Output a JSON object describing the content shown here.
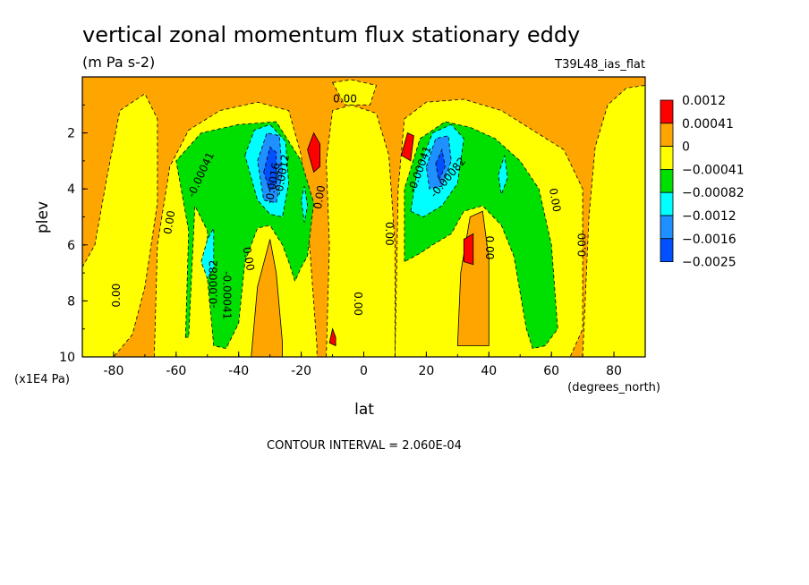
{
  "chart_data": {
    "type": "heatmap",
    "title": "vertical zonal momentum flux stationary eddy",
    "units": "(m Pa s-2)",
    "dataset_label": "T39L48_ias_flat",
    "xlabel": "lat",
    "xunits": "(degrees_north)",
    "ylabel": "plev",
    "yunits": "(x1E4 Pa)",
    "xlim": [
      -90,
      90
    ],
    "ylim": [
      0,
      10
    ],
    "y_inverted": true,
    "x_ticks": [
      "-80",
      "-60",
      "-40",
      "-20",
      "0",
      "20",
      "40",
      "60",
      "80"
    ],
    "x_tick_values": [
      -80,
      -60,
      -40,
      -20,
      0,
      20,
      40,
      60,
      80
    ],
    "y_ticks": [
      "2",
      "4",
      "6",
      "8",
      "10"
    ],
    "y_tick_values": [
      2,
      4,
      6,
      8,
      10
    ],
    "footer": "CONTOUR INTERVAL = 2.060E-04",
    "legend": {
      "placement": "right",
      "labels": [
        "0.0012",
        "0.00041",
        "0",
        "−0.00041",
        "−0.00082",
        "−0.0012",
        "−0.0016",
        "−0.0025"
      ],
      "colors": [
        "#ff0000",
        "#ffa500",
        "#ffff00",
        "#00e000",
        "#00ffff",
        "#1e90ff",
        "#0050ff"
      ]
    },
    "background_color": "#ffa500",
    "regions": [
      {
        "color": "#ffff00",
        "poly": [
          [
            -90,
            6.8
          ],
          [
            -86,
            6.0
          ],
          [
            -82,
            3.5
          ],
          [
            -78,
            1.2
          ],
          [
            -70,
            0.6
          ],
          [
            -66,
            1.5
          ],
          [
            -66,
            4.5
          ],
          [
            -70,
            7.5
          ],
          [
            -74,
            9.2
          ],
          [
            -80,
            10
          ],
          [
            -90,
            10
          ]
        ]
      },
      {
        "color": "#ffff00",
        "poly": [
          [
            -67,
            10
          ],
          [
            -66,
            6
          ],
          [
            -62,
            3.2
          ],
          [
            -56,
            1.9
          ],
          [
            -46,
            1.2
          ],
          [
            -34,
            0.9
          ],
          [
            -24,
            1.2
          ],
          [
            -20,
            2.8
          ],
          [
            -18,
            5
          ],
          [
            -15,
            9.6
          ],
          [
            -15,
            10
          ]
        ]
      },
      {
        "color": "#ffff00",
        "poly": [
          [
            -12,
            10
          ],
          [
            -11,
            6
          ],
          [
            -12,
            3
          ],
          [
            -10,
            1.2
          ],
          [
            -4,
            1.0
          ],
          [
            4,
            1.3
          ],
          [
            8,
            2.8
          ],
          [
            10,
            6
          ],
          [
            10,
            10
          ]
        ]
      },
      {
        "color": "#ffff00",
        "poly": [
          [
            10,
            10
          ],
          [
            11,
            4
          ],
          [
            13,
            1.5
          ],
          [
            20,
            0.9
          ],
          [
            32,
            0.8
          ],
          [
            44,
            1.2
          ],
          [
            54,
            1.9
          ],
          [
            64,
            2.6
          ],
          [
            70,
            4
          ],
          [
            70,
            9
          ],
          [
            66,
            10
          ]
        ]
      },
      {
        "color": "#ffff00",
        "poly": [
          [
            -10,
            0.2
          ],
          [
            -4,
            0.1
          ],
          [
            4,
            0.3
          ],
          [
            2,
            1.0
          ],
          [
            -6,
            1.0
          ]
        ]
      },
      {
        "color": "#ffff00",
        "poly": [
          [
            70,
            10
          ],
          [
            72,
            5
          ],
          [
            74,
            2.5
          ],
          [
            78,
            1.0
          ],
          [
            84,
            0.4
          ],
          [
            90,
            0.3
          ],
          [
            90,
            10
          ]
        ]
      },
      {
        "color": "#ffa500",
        "poly": [
          [
            -36,
            10
          ],
          [
            -34,
            7.5
          ],
          [
            -30,
            5.8
          ],
          [
            -28,
            7
          ],
          [
            -26,
            9.5
          ],
          [
            -26,
            10
          ]
        ]
      },
      {
        "color": "#ffa500",
        "poly": [
          [
            30,
            9.6
          ],
          [
            31,
            7
          ],
          [
            34,
            5
          ],
          [
            38,
            4.8
          ],
          [
            40,
            6.5
          ],
          [
            40,
            9.6
          ]
        ]
      },
      {
        "color": "#00e000",
        "poly": [
          [
            -57,
            9.3
          ],
          [
            -56,
            5.5
          ],
          [
            -60,
            3
          ],
          [
            -52,
            2
          ],
          [
            -40,
            1.7
          ],
          [
            -28,
            1.6
          ],
          [
            -20,
            3.0
          ],
          [
            -16,
            4.5
          ],
          [
            -18,
            6.4
          ],
          [
            -20,
            6.8
          ],
          [
            -22,
            7.3
          ],
          [
            -24,
            6.6
          ],
          [
            -26,
            6.0
          ],
          [
            -30,
            5.3
          ],
          [
            -34,
            5.4
          ],
          [
            -38,
            6.6
          ],
          [
            -40,
            8.8
          ],
          [
            -44,
            9.7
          ],
          [
            -48,
            9.6
          ],
          [
            -50,
            7.2
          ],
          [
            -50,
            5.5
          ],
          [
            -54,
            4.6
          ],
          [
            -56,
            9.3
          ]
        ]
      },
      {
        "color": "#00e000",
        "poly": [
          [
            13,
            6.6
          ],
          [
            13,
            4
          ],
          [
            18,
            2.2
          ],
          [
            26,
            1.6
          ],
          [
            34,
            1.8
          ],
          [
            42,
            2.2
          ],
          [
            50,
            3.0
          ],
          [
            56,
            4
          ],
          [
            60,
            6
          ],
          [
            62,
            9.0
          ],
          [
            58,
            9.6
          ],
          [
            54,
            9.7
          ],
          [
            52,
            9.0
          ],
          [
            48,
            6.4
          ],
          [
            44,
            5.3
          ],
          [
            38,
            4.6
          ],
          [
            32,
            4.8
          ],
          [
            28,
            5.6
          ],
          [
            22,
            6.0
          ],
          [
            18,
            6.3
          ]
        ]
      },
      {
        "color": "#00ffff",
        "poly": [
          [
            -52,
            6.6
          ],
          [
            -50,
            5.8
          ],
          [
            -48,
            5.4
          ],
          [
            -48,
            6.8
          ],
          [
            -50,
            7.2
          ]
        ]
      },
      {
        "color": "#00ffff",
        "poly": [
          [
            -38,
            2.8
          ],
          [
            -35,
            1.9
          ],
          [
            -30,
            1.7
          ],
          [
            -25,
            2.3
          ],
          [
            -24,
            3.8
          ],
          [
            -26,
            5.0
          ],
          [
            -30,
            4.9
          ],
          [
            -34,
            4.4
          ]
        ]
      },
      {
        "color": "#00ffff",
        "poly": [
          [
            -20,
            4.4
          ],
          [
            -19,
            3.9
          ],
          [
            -18,
            4.6
          ],
          [
            -19,
            5.2
          ]
        ]
      },
      {
        "color": "#00ffff",
        "poly": [
          [
            15,
            4.8
          ],
          [
            17,
            3.4
          ],
          [
            22,
            2.0
          ],
          [
            28,
            1.7
          ],
          [
            32,
            2.2
          ],
          [
            30,
            3.8
          ],
          [
            25,
            4.6
          ],
          [
            19,
            5.0
          ]
        ]
      },
      {
        "color": "#00ffff",
        "poly": [
          [
            43,
            3.5
          ],
          [
            45,
            2.8
          ],
          [
            46,
            3.6
          ],
          [
            44,
            4.2
          ]
        ]
      },
      {
        "color": "#1e90ff",
        "poly": [
          [
            -34,
            3.0
          ],
          [
            -31,
            2.0
          ],
          [
            -27,
            2.1
          ],
          [
            -26,
            3.4
          ],
          [
            -28,
            4.5
          ],
          [
            -32,
            4.4
          ]
        ]
      },
      {
        "color": "#1e90ff",
        "poly": [
          [
            20,
            3.2
          ],
          [
            23,
            2.2
          ],
          [
            27,
            2.1
          ],
          [
            28,
            3.0
          ],
          [
            25,
            3.9
          ],
          [
            21,
            4.0
          ]
        ]
      },
      {
        "color": "#0050ff",
        "poly": [
          [
            -32,
            3.4
          ],
          [
            -30,
            2.5
          ],
          [
            -28,
            2.7
          ],
          [
            -28,
            3.8
          ],
          [
            -30,
            4.1
          ]
        ]
      },
      {
        "color": "#0050ff",
        "poly": [
          [
            23,
            3.1
          ],
          [
            25,
            2.6
          ],
          [
            26,
            3.2
          ],
          [
            24,
            3.7
          ]
        ]
      },
      {
        "color": "#ff0000",
        "poly": [
          [
            -18,
            2.6
          ],
          [
            -16,
            2.0
          ],
          [
            -14,
            2.4
          ],
          [
            -14,
            3.2
          ],
          [
            -16,
            3.4
          ]
        ]
      },
      {
        "color": "#ff0000",
        "poly": [
          [
            12,
            2.8
          ],
          [
            14,
            2.0
          ],
          [
            16,
            2.1
          ],
          [
            15,
            3.0
          ]
        ]
      },
      {
        "color": "#ff0000",
        "poly": [
          [
            32,
            5.8
          ],
          [
            35,
            5.6
          ],
          [
            35,
            6.7
          ],
          [
            32,
            6.6
          ]
        ]
      },
      {
        "color": "#ff0000",
        "poly": [
          [
            -11,
            9.5
          ],
          [
            -10,
            9.0
          ],
          [
            -9,
            9.3
          ],
          [
            -9,
            9.6
          ]
        ]
      }
    ],
    "contour_labels": [
      {
        "text": "0.00",
        "lat": -79,
        "plev": 7.8,
        "rot": -90
      },
      {
        "text": "0.00",
        "lat": -62,
        "plev": 5.2,
        "rot": -80
      },
      {
        "text": "-0.00041",
        "lat": -52,
        "plev": 3.5,
        "rot": -65
      },
      {
        "text": "-0.00082",
        "lat": -48,
        "plev": 7.4,
        "rot": -90
      },
      {
        "text": "-0.00041",
        "lat": -44,
        "plev": 7.8,
        "rot": 90
      },
      {
        "text": "0.00",
        "lat": -37,
        "plev": 6.5,
        "rot": 80
      },
      {
        "text": "-0.0016",
        "lat": -29,
        "plev": 3.8,
        "rot": -80
      },
      {
        "text": "-0.0012",
        "lat": -26,
        "plev": 3.5,
        "rot": -80
      },
      {
        "text": "0.00",
        "lat": -14,
        "plev": 4.3,
        "rot": -80
      },
      {
        "text": "0.00",
        "lat": -6,
        "plev": 0.8,
        "rot": 0
      },
      {
        "text": "0.00",
        "lat": -2,
        "plev": 8.1,
        "rot": 90
      },
      {
        "text": "0.00",
        "lat": 8,
        "plev": 5.6,
        "rot": 90
      },
      {
        "text": "-0.00041",
        "lat": 18,
        "plev": 3.3,
        "rot": -70
      },
      {
        "text": "-0.00082",
        "lat": 27,
        "plev": 3.6,
        "rot": -50
      },
      {
        "text": "0.00",
        "lat": 40,
        "plev": 6.1,
        "rot": 90
      },
      {
        "text": "0.00",
        "lat": 61,
        "plev": 4.4,
        "rot": 80
      },
      {
        "text": "0.00",
        "lat": 70,
        "plev": 6.0,
        "rot": -90
      }
    ]
  }
}
